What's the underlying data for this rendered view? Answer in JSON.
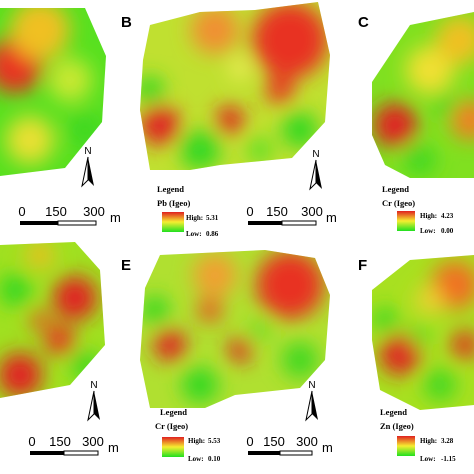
{
  "colors": {
    "high": "#e02020",
    "mid": "#f5ee30",
    "low": "#20e020",
    "scale_bar": "#000000"
  },
  "panels": [
    {
      "letter": "",
      "legend": null,
      "scale": {
        "ticks": [
          "0",
          "150",
          "300"
        ],
        "unit": "m"
      },
      "north": "N"
    },
    {
      "letter": "B",
      "legend": {
        "title": "Legend",
        "variable": "Pb (Igeo)",
        "high_label": "High:",
        "high_value": "5.31",
        "low_label": "Low:",
        "low_value": "0.86"
      },
      "scale": {
        "ticks": [
          "0",
          "150",
          "300"
        ],
        "unit": "m"
      },
      "north": "N"
    },
    {
      "letter": "C",
      "legend": {
        "title": "Legend",
        "variable": "Cr (Igeo)",
        "high_label": "High:",
        "high_value": "4.23",
        "low_label": "Low:",
        "low_value": "0.00"
      },
      "scale": null,
      "north": ""
    },
    {
      "letter": "",
      "legend": null,
      "scale": {
        "ticks": [
          "0",
          "150",
          "300"
        ],
        "unit": "m"
      },
      "north": "N"
    },
    {
      "letter": "E",
      "legend": {
        "title": "Legend",
        "variable": "Cr (Igeo)",
        "high_label": "High:",
        "high_value": "5.53",
        "low_label": "Low:",
        "low_value": "0.10"
      },
      "scale": {
        "ticks": [
          "0",
          "150",
          "300"
        ],
        "unit": "m"
      },
      "north": "N"
    },
    {
      "letter": "F",
      "legend": {
        "title": "Legend",
        "variable": "Zn (Igeo)",
        "high_label": "High:",
        "high_value": "3.28",
        "low_label": "Low:",
        "low_value": "-1.15"
      },
      "scale": null,
      "north": ""
    }
  ]
}
